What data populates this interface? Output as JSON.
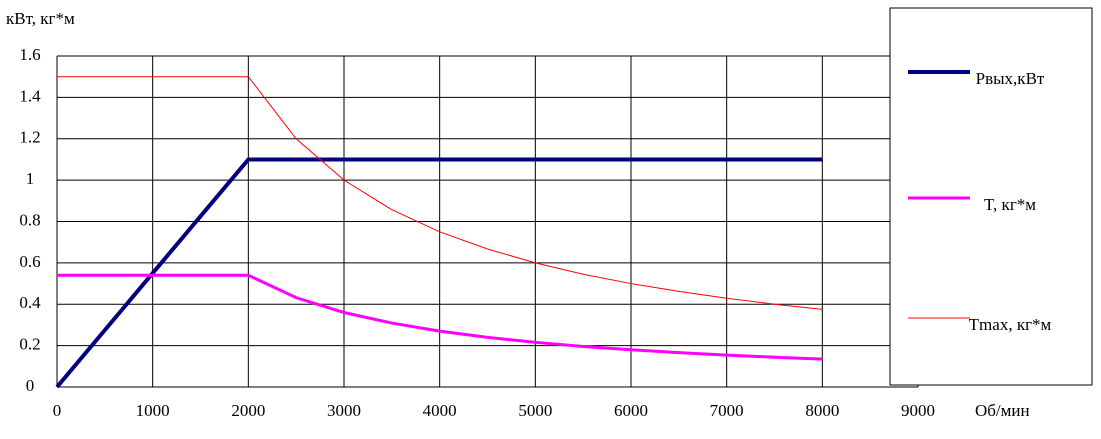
{
  "chart_data": {
    "type": "line",
    "y_label": "кВт, кг*м",
    "x_label": "Об/мин",
    "x": [
      0,
      500,
      1000,
      1500,
      2000,
      2500,
      3000,
      3500,
      4000,
      4500,
      5000,
      5500,
      6000,
      6500,
      7000,
      7500,
      8000
    ],
    "series": [
      {
        "name": "Pвых,кВт",
        "color": "#000080",
        "width": 4,
        "values": [
          0,
          0.275,
          0.55,
          0.825,
          1.1,
          1.1,
          1.1,
          1.1,
          1.1,
          1.1,
          1.1,
          1.1,
          1.1,
          1.1,
          1.1,
          1.1,
          1.1
        ]
      },
      {
        "name": "T, кг*м",
        "color": "#ff00ff",
        "width": 3,
        "values": [
          0.54,
          0.54,
          0.54,
          0.54,
          0.54,
          0.432,
          0.36,
          0.309,
          0.27,
          0.24,
          0.216,
          0.196,
          0.18,
          0.166,
          0.154,
          0.144,
          0.135
        ]
      },
      {
        "name": "Tmax, кг*м",
        "color": "#ff0000",
        "width": 1,
        "values": [
          1.5,
          1.5,
          1.5,
          1.5,
          1.5,
          1.2,
          1.0,
          0.857,
          0.75,
          0.667,
          0.6,
          0.545,
          0.5,
          0.462,
          0.429,
          0.4,
          0.375
        ]
      }
    ],
    "xlim": [
      0,
      9000
    ],
    "xticks": [
      0,
      1000,
      2000,
      3000,
      4000,
      5000,
      6000,
      7000,
      8000,
      9000
    ],
    "ylim": [
      0,
      1.6
    ],
    "yticks": [
      0,
      0.2,
      0.4,
      0.6,
      0.8,
      1,
      1.2,
      1.4,
      1.6
    ],
    "grid": true,
    "legend": "right"
  }
}
